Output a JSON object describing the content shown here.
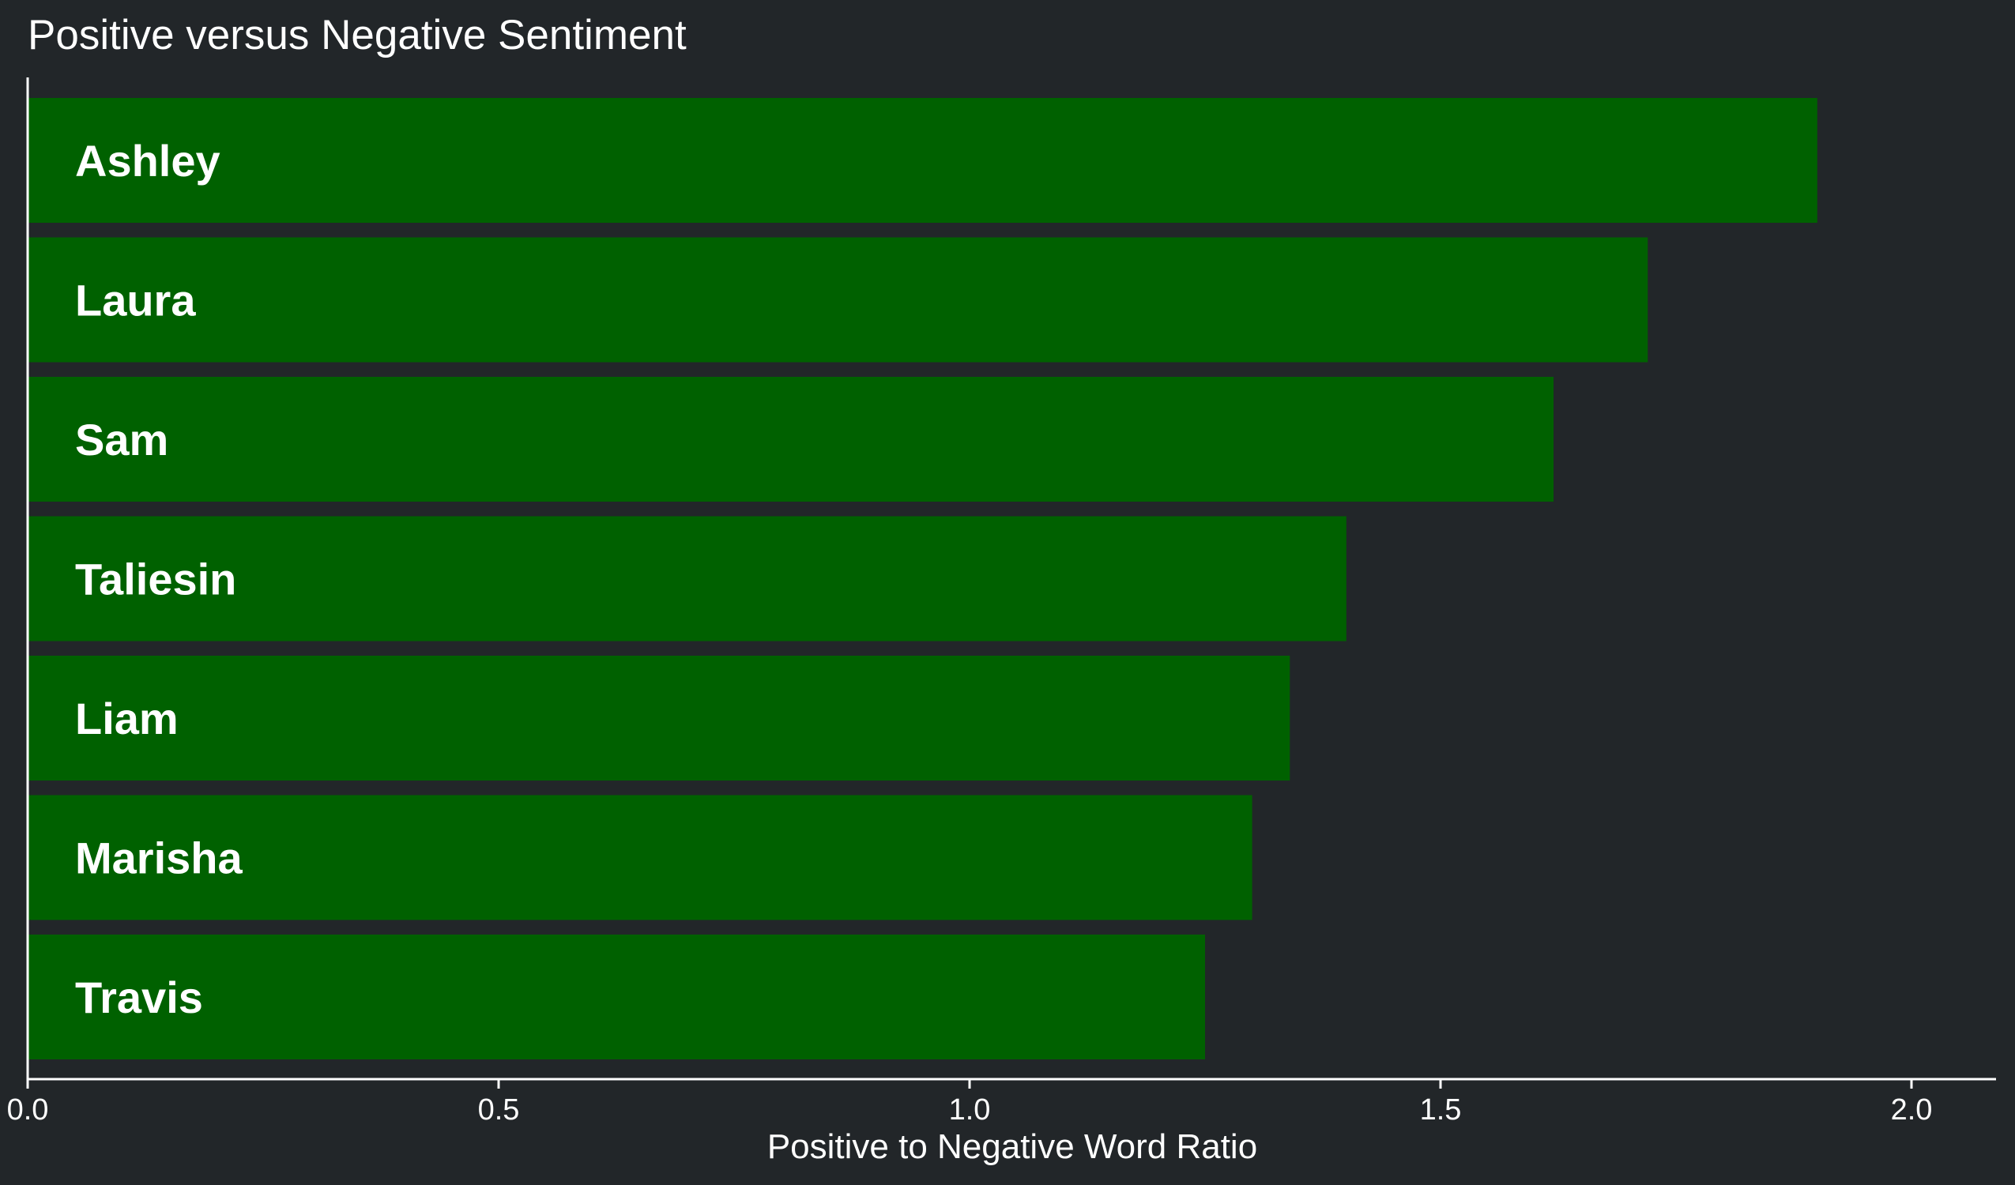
{
  "chart_data": {
    "type": "bar",
    "orientation": "horizontal",
    "title": "Positive versus Negative Sentiment",
    "xlabel": "Positive to Negative Word Ratio",
    "ylabel": "",
    "categories": [
      "Ashley",
      "Laura",
      "Sam",
      "Taliesin",
      "Liam",
      "Marisha",
      "Travis"
    ],
    "values": [
      1.9,
      1.72,
      1.62,
      1.4,
      1.34,
      1.3,
      1.25
    ],
    "xlim": [
      0,
      2.09
    ],
    "xticks": [
      0.0,
      0.5,
      1.0,
      1.5,
      2.0
    ],
    "xtick_labels": [
      "0.0",
      "0.5",
      "1.0",
      "1.5",
      "2.0"
    ],
    "grid": false,
    "legend": "none",
    "labels_inside_bars": true
  },
  "colors": {
    "background": "#222629",
    "bar": "#006100",
    "text": "#ffffff",
    "axis": "#ffffff"
  }
}
